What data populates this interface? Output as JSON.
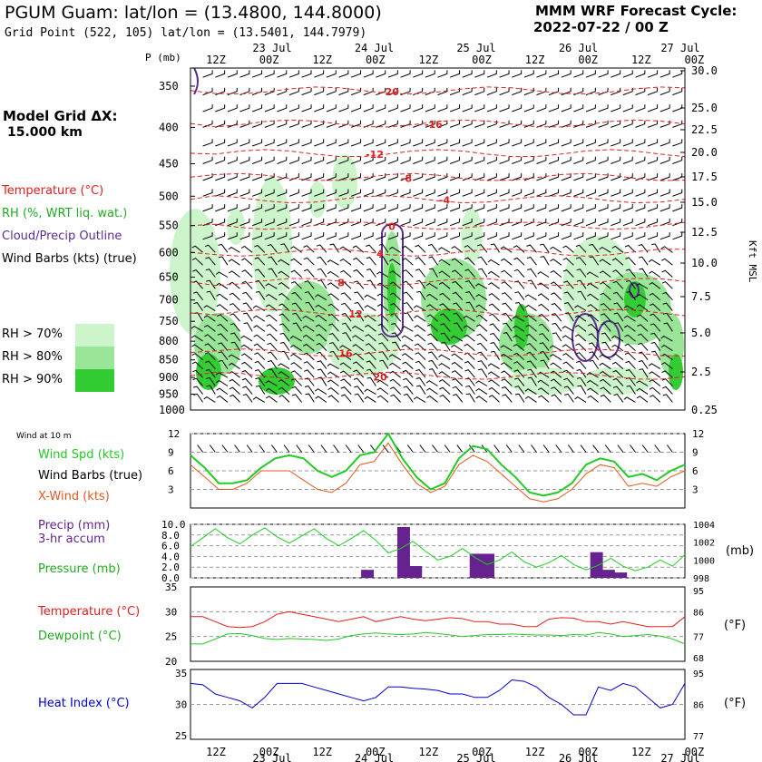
{
  "header": {
    "title": "PGUM Guam:  lat/lon = (13.4800, 144.8000)",
    "subtitle": "Grid Point (522, 105) lat/lon = (13.5401, 144.7979)",
    "cycle_label": "MMM WRF Forecast Cycle:",
    "cycle_value": "2022-07-22 / 00  Z"
  },
  "sidebar": {
    "grid_label": "Model Grid ΔX:",
    "grid_value": "15.000 km",
    "legend_temperature": "Temperature (°C)",
    "legend_rh": "RH (%, WRT liq. wat.)",
    "legend_cloud": "Cloud/Precip Outline",
    "legend_wind": "Wind Barbs (kts) (true)",
    "rh70": "RH > 70%",
    "rh80": "RH > 80%",
    "rh90": "RH > 90%"
  },
  "colors": {
    "temp": "#e02020",
    "rh70": "#ccf5cc",
    "rh80": "#99e699",
    "rh90": "#33cc33",
    "cloud": "#5a2d91",
    "green": "#22cc22",
    "orange": "#e05a20",
    "purple": "#66238f",
    "blue": "#0000cc"
  },
  "time_axis": {
    "hour_ticks": [
      "12Z",
      "00Z",
      "12Z",
      "00Z",
      "12Z",
      "00Z",
      "12Z",
      "00Z",
      "12Z",
      "00Z"
    ],
    "day_labels": [
      "23 Jul",
      "24 Jul",
      "25 Jul",
      "26 Jul",
      "27 Jul"
    ]
  },
  "chart_data": [
    {
      "type": "heatmap",
      "name_panel": "sounding",
      "ylabel_left": "P (mb)",
      "ylabel_right": "Kft MSL",
      "pressure_levels": [
        350,
        400,
        450,
        500,
        550,
        600,
        650,
        700,
        750,
        800,
        850,
        900,
        950,
        1000
      ],
      "kft_levels": [
        "30.0",
        "25.0",
        "22.5",
        "20.0",
        "17.5",
        "15.0",
        "12.5",
        "10.0",
        "7.5",
        "5.0",
        "2.5",
        "0.25"
      ],
      "temperature_contours": [
        {
          "label": "-20",
          "pressure": 355
        },
        {
          "label": "-16",
          "pressure": 395
        },
        {
          "label": "-12",
          "pressure": 435
        },
        {
          "label": "-8",
          "pressure": 470
        },
        {
          "label": "-4",
          "pressure": 505
        },
        {
          "label": "0",
          "pressure": 550
        },
        {
          "label": "4",
          "pressure": 600
        },
        {
          "label": "8",
          "pressure": 660
        },
        {
          "label": "12",
          "pressure": 730
        },
        {
          "label": "16",
          "pressure": 830
        },
        {
          "label": "20",
          "pressure": 895
        }
      ]
    },
    {
      "type": "line",
      "name_panel": "wind",
      "wind_title": "Wind at 10 m",
      "labels": {
        "spd": "Wind Spd (kts)",
        "barbs": "Wind Barbs (true)",
        "xwind": "X-Wind (kts)"
      },
      "y_ticks": [
        "12",
        "9",
        "6",
        "3"
      ],
      "ylim": [
        0,
        12
      ],
      "series": [
        {
          "name": "Wind Spd (kts)",
          "values": [
            8.5,
            6.5,
            4,
            4,
            4.5,
            6.5,
            8,
            8.5,
            8,
            6,
            5,
            6,
            8.5,
            9,
            12,
            8,
            5,
            3,
            4,
            8,
            10,
            9.5,
            7,
            5,
            2.5,
            2,
            2.5,
            4,
            7,
            8,
            7.5,
            5,
            5.5,
            4.5,
            6,
            7
          ]
        },
        {
          "name": "X-Wind (kts)",
          "values": [
            7,
            5,
            3,
            3,
            4,
            6,
            6,
            6,
            4.5,
            3,
            2.5,
            4,
            7,
            7.5,
            10.5,
            7,
            4,
            2.5,
            3.5,
            7,
            8.5,
            7.5,
            5.5,
            3.5,
            1.5,
            1,
            1.5,
            3,
            5.5,
            7,
            6.5,
            3.5,
            4,
            3.5,
            5,
            6
          ]
        }
      ]
    },
    {
      "type": "bar",
      "name_panel": "precip",
      "labels": {
        "precip_a": "Precip (mm)",
        "precip_b": "3-hr accum",
        "pressure": "Pressure (mb)",
        "mb_unit": "(mb)"
      },
      "y_left_ticks": [
        "10.0",
        "8.0",
        "6.0",
        "4.0",
        "2.0",
        "0.0"
      ],
      "y_right_ticks": [
        "1004",
        "1002",
        "1000",
        "998"
      ],
      "precip_values": [
        0,
        0,
        0,
        0,
        0,
        0,
        0,
        0,
        0,
        0,
        0,
        0,
        0,
        0,
        1.5,
        0,
        0,
        9.5,
        2.2,
        0,
        0,
        0,
        0,
        4.5,
        4.5,
        0,
        0,
        0,
        0,
        0,
        0,
        0,
        0,
        4.8,
        1.5,
        1.0,
        0,
        0,
        0,
        0,
        0
      ],
      "pressure_values": [
        1001.5,
        1002.5,
        1003.5,
        1002.5,
        1001.8,
        1002.8,
        1003.6,
        1002.6,
        1001.9,
        1002.7,
        1003.5,
        1002.4,
        1001.6,
        1002.4,
        1003.3,
        1002.2,
        1000.8,
        1001.3,
        1002.1,
        1001,
        1000,
        1000.4,
        1001.3,
        1000.3,
        999.5,
        1000,
        1000.9,
        999.8,
        999.2,
        999.7,
        1000.5,
        999.5,
        998.9,
        999.4,
        1000.2,
        999.3,
        998.8,
        999.2,
        1000,
        999.3,
        1000.6
      ]
    },
    {
      "type": "line",
      "name_panel": "temperature",
      "labels": {
        "temp": "Temperature (°C)",
        "dew": "Dewpoint (°C)",
        "f_unit": "(°F)"
      },
      "y_left_ticks": [
        "35",
        "30",
        "25",
        "20"
      ],
      "y_right_ticks": [
        "95",
        "86",
        "77",
        "68"
      ],
      "ylim": [
        20,
        35
      ],
      "series": [
        {
          "name": "Temperature (°C)",
          "values": [
            29,
            29,
            28,
            27,
            26.8,
            27,
            28,
            29.5,
            30,
            29.5,
            29,
            28.5,
            28,
            28.5,
            29,
            28,
            28.5,
            29,
            28.5,
            28.2,
            28.5,
            28.8,
            28.6,
            28,
            28,
            27.5,
            27.5,
            27,
            27,
            28.5,
            28.8,
            28.7,
            28,
            28,
            27.5,
            28,
            27.5,
            27,
            27,
            27,
            29
          ]
        },
        {
          "name": "Dewpoint (°C)",
          "values": [
            23.5,
            23.5,
            24.5,
            25.5,
            25.6,
            25.2,
            24.6,
            24.4,
            24.6,
            24.5,
            24.4,
            24.2,
            24.5,
            25.2,
            25.5,
            25.7,
            25.5,
            25.4,
            25.5,
            25.8,
            25.6,
            25.3,
            25,
            25.2,
            25.4,
            25.4,
            25.5,
            25.4,
            25.3,
            25.3,
            25.2,
            25.4,
            25.3,
            25.8,
            25.5,
            25,
            25.2,
            25.4,
            25.1,
            24.5,
            23.5
          ]
        }
      ]
    },
    {
      "type": "line",
      "name_panel": "heat_index",
      "labels": {
        "hi": "Heat Index (°C)",
        "f_unit": "(°F)"
      },
      "y_left_ticks": [
        "35",
        "30",
        "25"
      ],
      "y_right_ticks": [
        "95",
        "86",
        "77"
      ],
      "ylim": [
        25,
        35
      ],
      "series": [
        {
          "name": "Heat Index (°C)",
          "values": [
            33,
            32.8,
            31.5,
            31,
            30.5,
            29.5,
            31,
            33,
            33,
            33,
            32.5,
            32,
            31.5,
            31,
            30.5,
            31,
            32.5,
            32.5,
            32.3,
            32.2,
            32,
            31.5,
            31.5,
            31,
            31,
            32,
            33.5,
            33.3,
            32.5,
            31,
            30,
            28.5,
            28.5,
            32.5,
            32,
            33,
            32.5,
            31,
            29.5,
            30,
            33
          ]
        }
      ]
    }
  ]
}
